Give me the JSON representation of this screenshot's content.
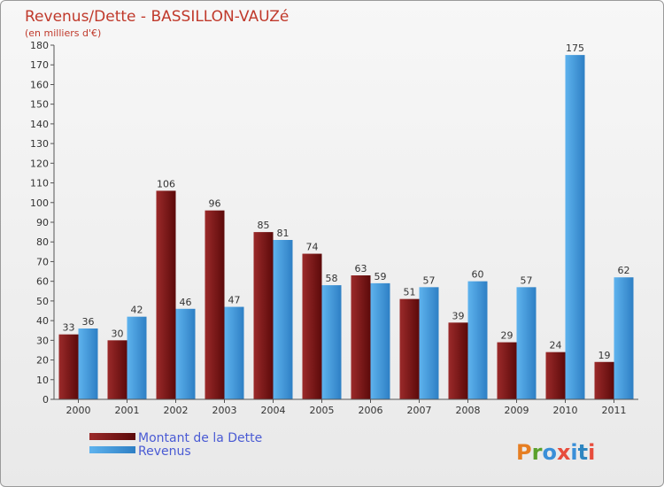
{
  "chart_data": {
    "type": "bar",
    "title": "Revenus/Dette - BASSILLON-VAUZé",
    "subtitle": "(en milliers d'€)",
    "categories": [
      "2000",
      "2001",
      "2002",
      "2003",
      "2004",
      "2005",
      "2006",
      "2007",
      "2008",
      "2009",
      "2010",
      "2011"
    ],
    "series": [
      {
        "name": "Montant de la Dette",
        "color": "#7a1212",
        "values": [
          33,
          30,
          106,
          96,
          85,
          74,
          63,
          51,
          39,
          29,
          24,
          19
        ]
      },
      {
        "name": "Revenus",
        "color": "#3f9be0",
        "values": [
          36,
          42,
          46,
          47,
          81,
          58,
          59,
          57,
          60,
          57,
          175,
          62
        ]
      }
    ],
    "ylim": [
      0,
      180
    ],
    "ytick_step": 10,
    "grid": false,
    "legend_position": "bottom-left"
  },
  "brand": {
    "logo_text": "Proxiti",
    "letter_colors": [
      "#e67e22",
      "#5aa02c",
      "#3a8fd8",
      "#e74c3c",
      "#3a8fd8",
      "#2e86c1",
      "#e74c3c"
    ]
  }
}
